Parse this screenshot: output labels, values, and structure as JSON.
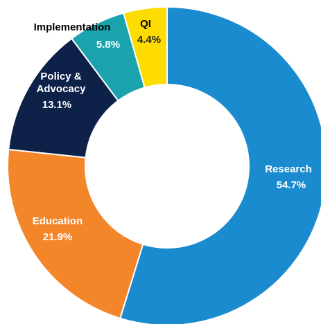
{
  "chart_data": {
    "type": "donut",
    "categories": [
      "Research",
      "Education",
      "Policy & Advocacy",
      "Implementation",
      "QI"
    ],
    "values": [
      54.7,
      21.9,
      13.1,
      5.8,
      4.4
    ],
    "value_labels": [
      "54.7%",
      "21.9%",
      "13.1%",
      "5.8%",
      "4.4%"
    ],
    "colors": [
      "#1b8bd0",
      "#f4862a",
      "#0d2149",
      "#1ba3ad",
      "#fedc00"
    ]
  }
}
